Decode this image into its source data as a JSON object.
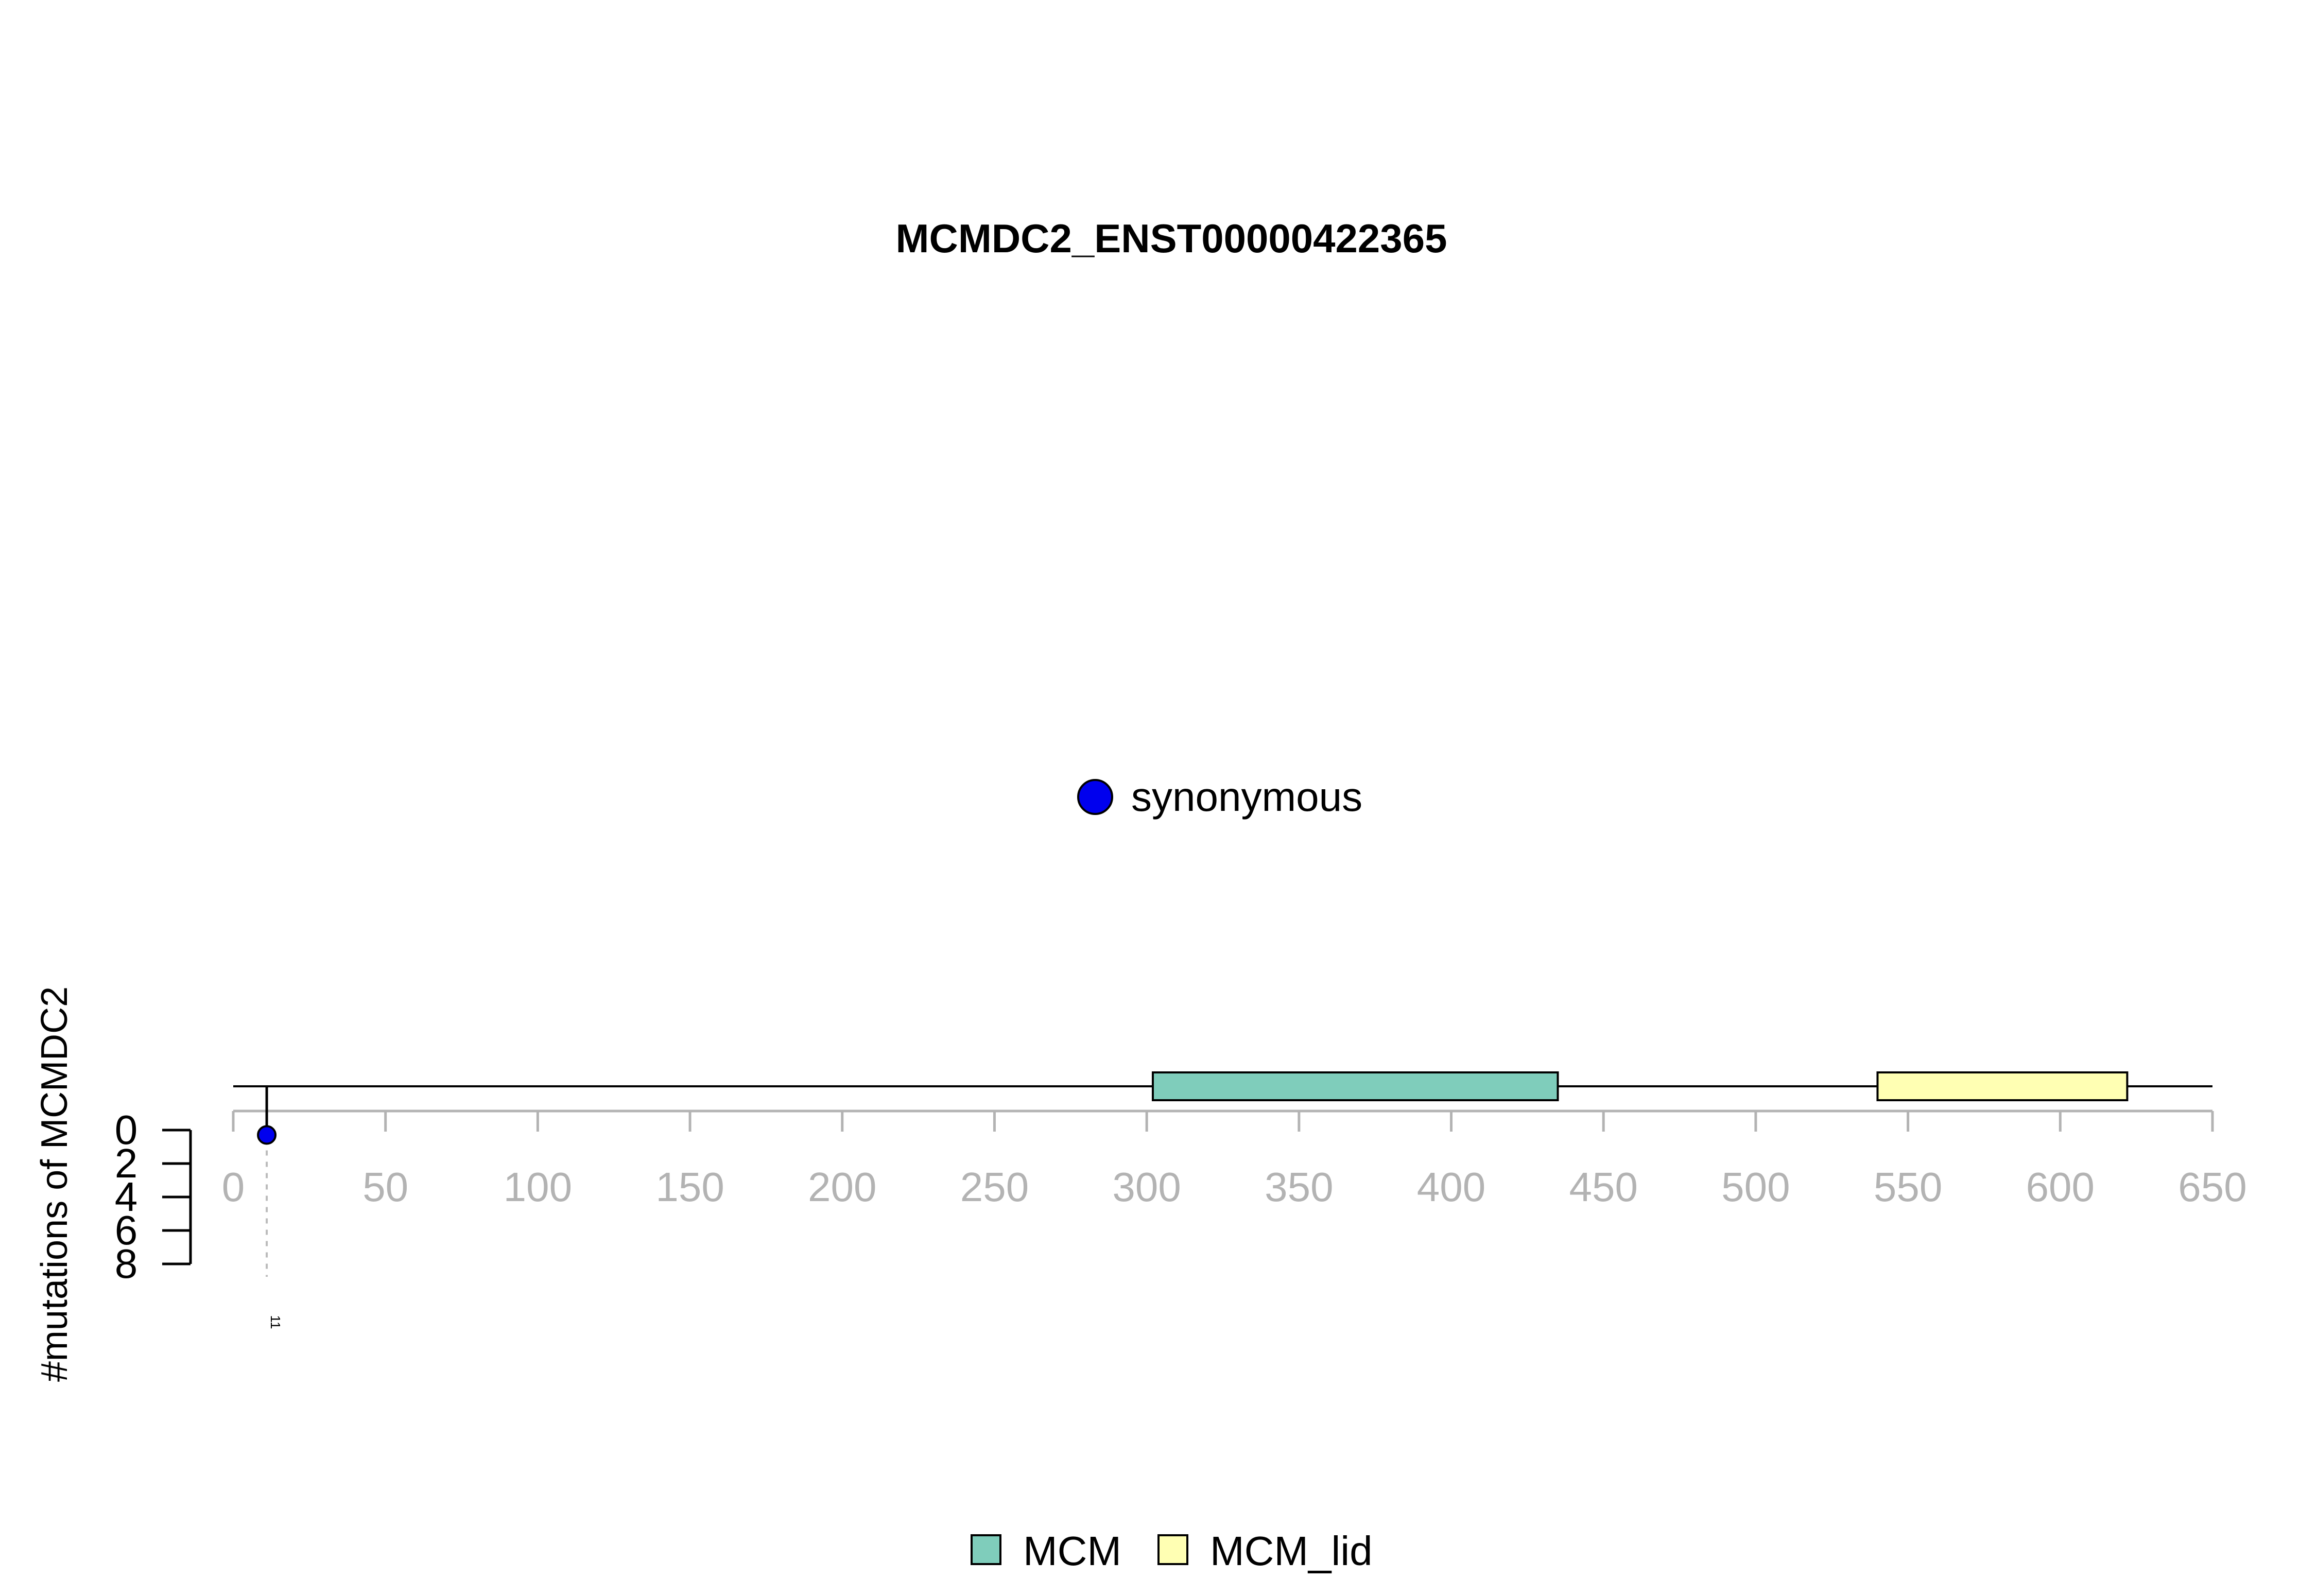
{
  "chart_data": {
    "type": "lollipop",
    "title": "MCMDC2_ENST00000422365",
    "ylabel": "#mutations of MCMDC2",
    "xlim": [
      0,
      650
    ],
    "x_ticks": [
      0,
      50,
      100,
      150,
      200,
      250,
      300,
      350,
      400,
      450,
      500,
      550,
      600,
      650
    ],
    "y_ticks": [
      0,
      2,
      4,
      6,
      8
    ],
    "ylim": [
      0,
      8
    ],
    "mutations": [
      {
        "position": 11,
        "count": 1,
        "type": "synonymous",
        "label": "11"
      }
    ],
    "domains": [
      {
        "name": "MCM",
        "start": 302,
        "end": 435
      },
      {
        "name": "MCM_lid",
        "start": 540,
        "end": 622
      }
    ],
    "mutation_legend": [
      {
        "label": "synonymous"
      }
    ],
    "domain_legend": [
      {
        "label": "MCM"
      },
      {
        "label": "MCM_lid"
      }
    ]
  },
  "colors": {
    "synonymous": "#0000ee",
    "MCM": "#7fcdbb",
    "MCM_lid": "#ffffb3",
    "axis_gray": "#b3b3b3",
    "text_gray": "#b3b3b3",
    "black": "#000000"
  }
}
